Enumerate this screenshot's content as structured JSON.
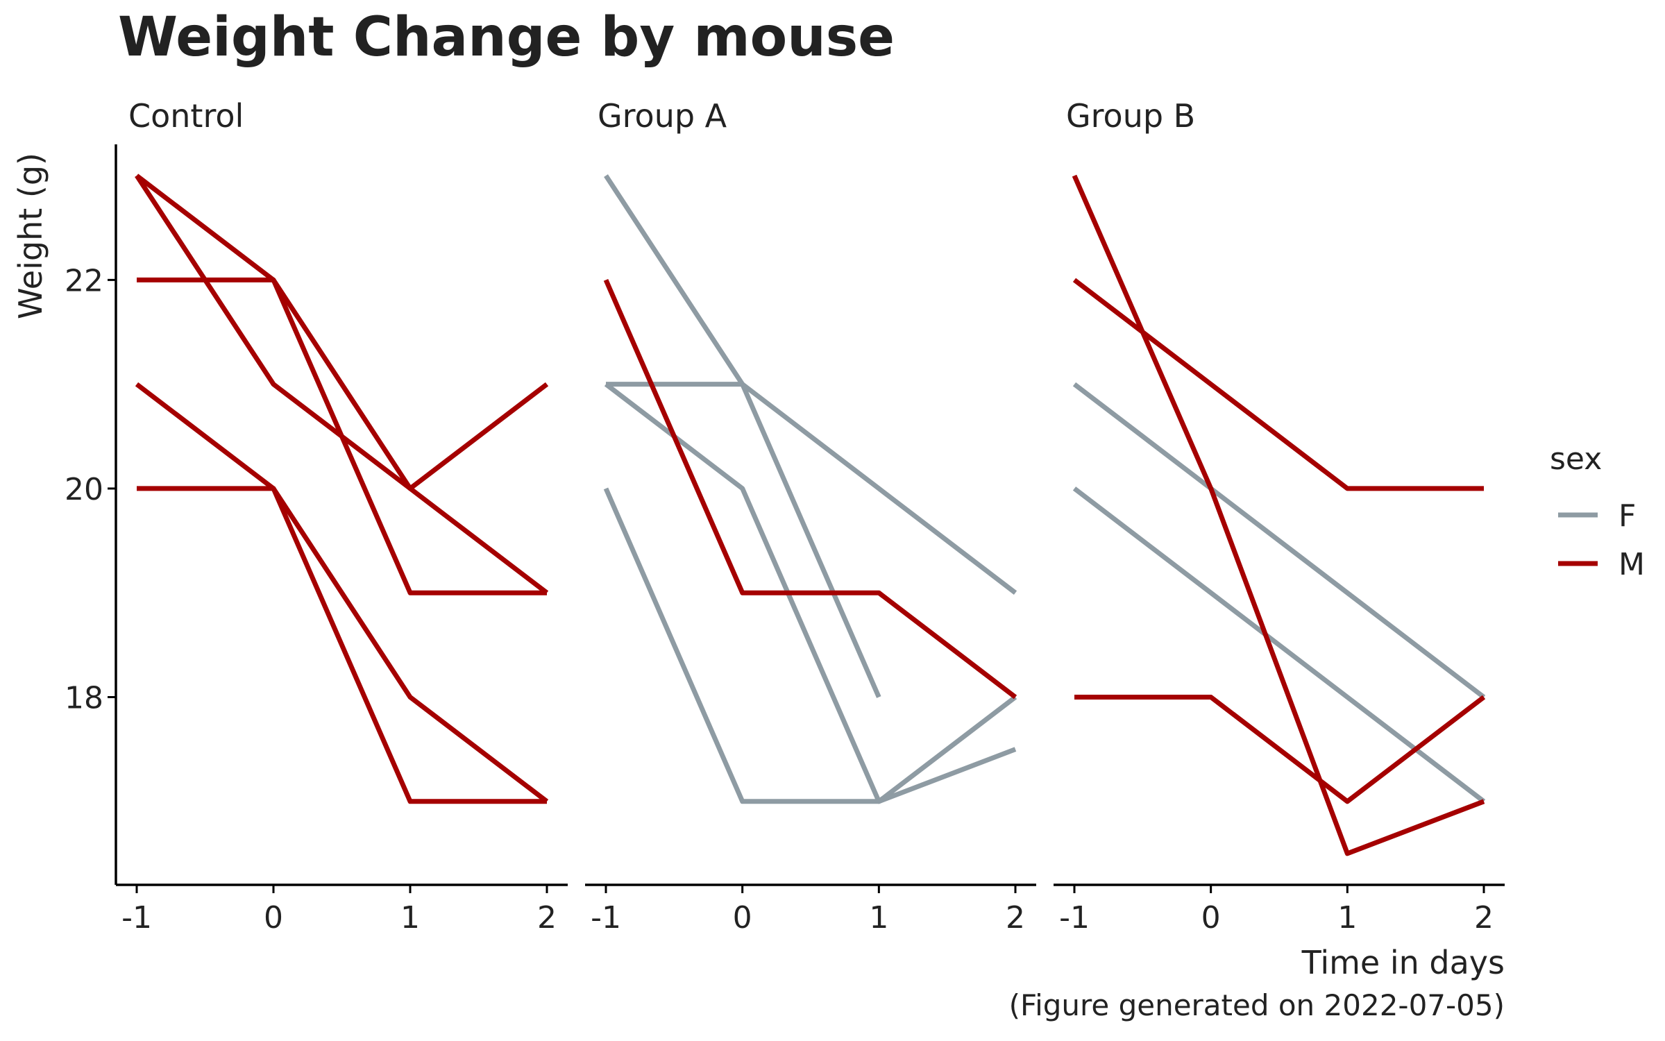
{
  "chart_data": {
    "type": "line",
    "title": "Weight Change by mouse",
    "xlabel": "Time in days",
    "ylabel": "Weight (g)",
    "caption": "(Figure generated on 2022-07-05)",
    "x_ticks": [
      -1,
      0,
      1,
      2
    ],
    "y_ticks": [
      18,
      20,
      22
    ],
    "xlim": [
      -1.15,
      2.15
    ],
    "ylim": [
      16.2,
      23.3
    ],
    "grid": false,
    "legend": {
      "title": "sex",
      "position": "right",
      "entries": [
        {
          "label": "F",
          "color": "#8e9ba3"
        },
        {
          "label": "M",
          "color": "#a50000"
        }
      ]
    },
    "colors": {
      "F": "#8e9ba3",
      "M": "#a50000"
    },
    "facets": [
      {
        "name": "Control",
        "series": [
          {
            "sex": "M",
            "x": [
              -1,
              0,
              1,
              2
            ],
            "values": [
              23,
              22,
              19,
              19
            ]
          },
          {
            "sex": "M",
            "x": [
              -1,
              0,
              1,
              2
            ],
            "values": [
              22,
              22,
              20,
              21
            ]
          },
          {
            "sex": "M",
            "x": [
              -1,
              0,
              1,
              2
            ],
            "values": [
              23,
              21,
              20,
              19
            ]
          },
          {
            "sex": "M",
            "x": [
              -1,
              0,
              1,
              2
            ],
            "values": [
              21,
              20,
              17,
              17
            ]
          },
          {
            "sex": "M",
            "x": [
              -1,
              0,
              1,
              2
            ],
            "values": [
              20,
              20,
              18,
              17
            ]
          }
        ]
      },
      {
        "name": "Group A",
        "series": [
          {
            "sex": "F",
            "x": [
              -1,
              0,
              1
            ],
            "values": [
              23,
              21,
              18
            ]
          },
          {
            "sex": "F",
            "x": [
              -1,
              0,
              1,
              2
            ],
            "values": [
              21,
              21,
              20,
              19
            ]
          },
          {
            "sex": "F",
            "x": [
              -1,
              0,
              1,
              2
            ],
            "values": [
              21,
              20,
              17,
              18
            ]
          },
          {
            "sex": "F",
            "x": [
              -1,
              0,
              1,
              2
            ],
            "values": [
              20,
              17,
              17,
              17.5
            ]
          },
          {
            "sex": "M",
            "x": [
              -1,
              0,
              1,
              2
            ],
            "values": [
              22,
              19,
              19,
              18
            ]
          }
        ]
      },
      {
        "name": "Group B",
        "series": [
          {
            "sex": "F",
            "x": [
              -1,
              0,
              1,
              2
            ],
            "values": [
              21,
              20,
              19,
              18
            ]
          },
          {
            "sex": "F",
            "x": [
              -1,
              0,
              1,
              2
            ],
            "values": [
              20,
              19,
              18,
              17
            ]
          },
          {
            "sex": "M",
            "x": [
              -1,
              0,
              1,
              2
            ],
            "values": [
              23,
              20,
              16.5,
              17
            ]
          },
          {
            "sex": "M",
            "x": [
              -1,
              0,
              1,
              2
            ],
            "values": [
              22,
              21,
              20,
              20
            ]
          },
          {
            "sex": "M",
            "x": [
              -1,
              0,
              1,
              2
            ],
            "values": [
              18,
              18,
              17,
              18
            ]
          }
        ]
      }
    ]
  }
}
